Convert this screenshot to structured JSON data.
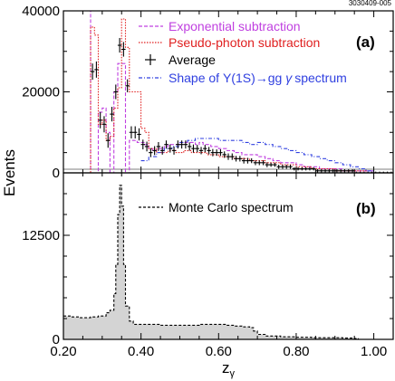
{
  "figure_id": "3030409-005",
  "colors": {
    "exponential": "#c040e0",
    "pseudo_photon": "#e02020",
    "shape": "#3040e0",
    "average": "#000000",
    "mc_fill": "#d4d4d4"
  },
  "chart_data": [
    {
      "type": "line",
      "panel": "(a)",
      "ylabel": "Events",
      "ylim": [
        0,
        40000
      ],
      "xlim": [
        0.2,
        1.05
      ],
      "y_ticks": [
        "0",
        "20000",
        "40000"
      ],
      "y_tick_values": [
        0,
        20000,
        40000
      ],
      "legend_position": "top-right",
      "legend": [
        {
          "key": "exponential",
          "label": "Exponential subtraction",
          "style": "dashed"
        },
        {
          "key": "pseudo_photon",
          "label": "Pseudo-photon subtraction",
          "style": "dotted"
        },
        {
          "key": "average",
          "label": "Average",
          "style": "cross"
        },
        {
          "key": "shape",
          "label_pre": "Shape of ",
          "label_upsilon": "Υ",
          "label_post": "(1S)",
          "label_arrow": "→",
          "label_gg": "gg ",
          "label_gamma": "γ",
          "label_end": "spectrum",
          "style": "dash-dot"
        }
      ],
      "series": [
        {
          "name": "Average",
          "key": "average",
          "x": [
            0.275,
            0.285,
            0.295,
            0.305,
            0.315,
            0.325,
            0.335,
            0.345,
            0.355,
            0.365,
            0.375,
            0.385,
            0.395,
            0.405,
            0.415,
            0.425,
            0.435,
            0.445,
            0.455,
            0.465,
            0.475,
            0.485,
            0.495,
            0.505,
            0.515,
            0.525,
            0.535,
            0.545,
            0.555,
            0.565,
            0.575,
            0.585,
            0.595,
            0.605,
            0.615,
            0.625,
            0.635,
            0.645,
            0.655,
            0.665,
            0.675,
            0.685,
            0.695,
            0.705,
            0.715,
            0.725,
            0.735,
            0.745,
            0.755,
            0.765,
            0.775,
            0.785,
            0.795,
            0.805,
            0.815,
            0.825,
            0.835,
            0.845,
            0.855,
            0.865,
            0.875,
            0.885,
            0.895,
            0.905,
            0.915,
            0.925,
            0.935,
            0.945,
            0.955,
            0.965,
            0.975,
            0.985,
            0.995,
            1.005,
            1.015,
            1.025,
            1.035,
            1.045
          ],
          "y": [
            25000,
            25500,
            13000,
            12000,
            8000,
            14500,
            20000,
            31500,
            30500,
            21500,
            10000,
            10000,
            9500,
            7000,
            6500,
            5000,
            5500,
            6500,
            5500,
            7000,
            6000,
            5500,
            7000,
            7000,
            7000,
            6500,
            6000,
            6000,
            5500,
            6000,
            5500,
            5000,
            5000,
            5000,
            4500,
            4000,
            4000,
            3500,
            3500,
            3000,
            3000,
            3000,
            2500,
            2500,
            2500,
            2000,
            2000,
            2000,
            1500,
            1500,
            1500,
            1500,
            1000,
            1000,
            1000,
            1000,
            1000,
            1000,
            500,
            500,
            500,
            500,
            500,
            500,
            500,
            500,
            500,
            500,
            0,
            0,
            0,
            0,
            0,
            0,
            0,
            0,
            0,
            0
          ],
          "yerr": [
            2000,
            2000,
            2000,
            2000,
            1800,
            1800,
            1800,
            1800,
            1800,
            1600,
            1500,
            1500,
            1500,
            1200,
            1200,
            1100,
            1100,
            1100,
            1000,
            1000,
            1000,
            1000,
            1000,
            1000,
            1000,
            1000,
            1000,
            900,
            900,
            900,
            900,
            900,
            800,
            800,
            800,
            800,
            800,
            700,
            700,
            700,
            700,
            600,
            600,
            600,
            600,
            600,
            500,
            500,
            500,
            500,
            500,
            500,
            400,
            400,
            400,
            400,
            400,
            400,
            400,
            400,
            400,
            400,
            400,
            400,
            400,
            400,
            400,
            400,
            300,
            300,
            300,
            300,
            300,
            300,
            300,
            300,
            300,
            300
          ]
        },
        {
          "name": "Exponential subtraction",
          "key": "exponential",
          "x": [
            0.25,
            0.26,
            0.27,
            0.28,
            0.29,
            0.3,
            0.31,
            0.32,
            0.33,
            0.34,
            0.35,
            0.36,
            0.37,
            0.38,
            0.39,
            0.4,
            0.41,
            0.42,
            0.43,
            0.44,
            0.45,
            0.46,
            0.47,
            0.48,
            0.49,
            0.5,
            0.51,
            0.52,
            0.53,
            0.54,
            0.55,
            0.56,
            0.57,
            0.58,
            0.59,
            0.6,
            0.62,
            0.64,
            0.66,
            0.68,
            0.7,
            0.72,
            0.74,
            0.76,
            0.78,
            0.8,
            0.82,
            0.84,
            0.86,
            0.88,
            0.9,
            0.92,
            0.94,
            0.96,
            0.98,
            1.0,
            1.02,
            1.05
          ],
          "y": [
            40000,
            40000,
            0,
            0,
            15000,
            16000,
            10000,
            0,
            20000,
            27000,
            27000,
            0,
            8000,
            8000,
            7500,
            7500,
            7000,
            6000,
            5500,
            6000,
            6000,
            6500,
            7000,
            7000,
            7000,
            7500,
            7500,
            7500,
            7500,
            7000,
            7500,
            7000,
            7000,
            6500,
            6500,
            6000,
            5500,
            5000,
            4500,
            4500,
            4000,
            3500,
            3000,
            2500,
            2500,
            2000,
            1500,
            1500,
            1000,
            1000,
            1000,
            500,
            500,
            500,
            500,
            0,
            0,
            0
          ]
        },
        {
          "name": "Pseudo-photon subtraction",
          "key": "pseudo_photon",
          "x": [
            0.25,
            0.26,
            0.27,
            0.28,
            0.29,
            0.3,
            0.31,
            0.32,
            0.33,
            0.34,
            0.35,
            0.36,
            0.37,
            0.38,
            0.39,
            0.4,
            0.41,
            0.42,
            0.43,
            0.44,
            0.45,
            0.46,
            0.47,
            0.48,
            0.49,
            0.5,
            0.51,
            0.52,
            0.53,
            0.54,
            0.55,
            0.56,
            0.57,
            0.58,
            0.59,
            0.6,
            0.62,
            0.64,
            0.66,
            0.68,
            0.7,
            0.72,
            0.74,
            0.76,
            0.78,
            0.8,
            0.82,
            0.84,
            0.86,
            0.88,
            0.9,
            0.92,
            0.94,
            0.96,
            0.98,
            1.0,
            1.02,
            1.05
          ],
          "y": [
            0,
            0,
            36000,
            34000,
            12000,
            13000,
            8000,
            9000,
            16000,
            21000,
            38000,
            31000,
            20000,
            20000,
            20000,
            11000,
            10000,
            6000,
            6000,
            5000,
            5000,
            5000,
            5500,
            5500,
            5000,
            5000,
            5500,
            5500,
            5000,
            5000,
            5000,
            5000,
            4500,
            4500,
            4500,
            4000,
            4000,
            3500,
            3500,
            3000,
            3000,
            2500,
            2500,
            2000,
            2000,
            1500,
            1500,
            1000,
            1000,
            1000,
            500,
            500,
            500,
            500,
            0,
            0,
            0,
            0
          ]
        },
        {
          "name": "Shape of Υ(1S) → gg γ spectrum",
          "key": "shape",
          "x": [
            0.4,
            0.42,
            0.44,
            0.46,
            0.48,
            0.5,
            0.52,
            0.54,
            0.56,
            0.58,
            0.6,
            0.62,
            0.64,
            0.66,
            0.68,
            0.7,
            0.72,
            0.74,
            0.76,
            0.78,
            0.8,
            0.82,
            0.84,
            0.86,
            0.88,
            0.9,
            0.92,
            0.94,
            0.96,
            0.98,
            1.0,
            1.02,
            1.05
          ],
          "y": [
            3000,
            4000,
            5000,
            6000,
            6500,
            7500,
            8000,
            8500,
            8500,
            8500,
            8000,
            8000,
            8000,
            7500,
            7000,
            7500,
            7000,
            6500,
            6000,
            5500,
            5000,
            4500,
            4000,
            3500,
            3000,
            2500,
            2000,
            1500,
            1000,
            500,
            0,
            0,
            0
          ]
        }
      ]
    },
    {
      "type": "area",
      "panel": "(b)",
      "xlabel_main": "z",
      "xlabel_sub": "γ",
      "ylim": [
        0,
        20000
      ],
      "xlim": [
        0.2,
        1.05
      ],
      "y_ticks": [
        "0",
        "12500"
      ],
      "y_tick_values": [
        0,
        12500
      ],
      "x_ticks": [
        "0.20",
        "0.40",
        "0.60",
        "0.80",
        "1.00"
      ],
      "x_tick_values": [
        0.2,
        0.4,
        0.6,
        0.8,
        1.0
      ],
      "legend": [
        {
          "label": "Monte Carlo spectrum",
          "style": "dashed"
        }
      ],
      "series": [
        {
          "name": "Monte Carlo spectrum",
          "x": [
            0.2,
            0.21,
            0.22,
            0.23,
            0.24,
            0.25,
            0.26,
            0.27,
            0.28,
            0.29,
            0.3,
            0.31,
            0.32,
            0.33,
            0.335,
            0.34,
            0.345,
            0.35,
            0.355,
            0.36,
            0.37,
            0.38,
            0.4,
            0.45,
            0.5,
            0.55,
            0.6,
            0.62,
            0.64,
            0.66,
            0.68,
            0.69,
            0.7,
            0.72,
            0.76,
            0.8,
            0.84,
            0.88,
            0.92,
            0.95,
            0.96,
            1.05
          ],
          "y": [
            2800,
            2800,
            2700,
            2700,
            2600,
            2600,
            2600,
            2700,
            2700,
            2800,
            2800,
            3200,
            3500,
            5500,
            9000,
            15000,
            18500,
            16000,
            9000,
            4000,
            2200,
            1800,
            1800,
            1700,
            1700,
            1800,
            1800,
            1700,
            1600,
            1500,
            1400,
            1000,
            600,
            400,
            300,
            250,
            200,
            200,
            150,
            100,
            0,
            0
          ]
        }
      ]
    }
  ]
}
